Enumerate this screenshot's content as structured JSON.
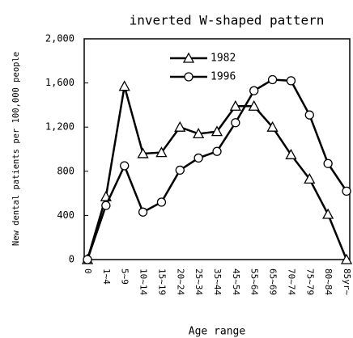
{
  "chart_data": {
    "type": "line",
    "title": "inverted W-shaped pattern",
    "x_label": "Age range",
    "y_label": "New dental patients per 100,000 people",
    "categories": [
      "0",
      "1~4",
      "5~9",
      "10~14",
      "15~19",
      "20~24",
      "25~34",
      "35~44",
      "45~54",
      "55~64",
      "65~69",
      "70~74",
      "75~79",
      "80~84",
      "85yr~"
    ],
    "series": [
      {
        "name": "1982",
        "color": "#000000",
        "marker": "triangle",
        "values": [
          0,
          570,
          1570,
          960,
          970,
          1200,
          1140,
          1160,
          1390,
          1390,
          1200,
          950,
          730,
          410,
          0
        ]
      },
      {
        "name": "1996",
        "color": "#000000",
        "marker": "circle",
        "values": [
          0,
          490,
          850,
          430,
          520,
          810,
          920,
          980,
          1240,
          1530,
          1630,
          1620,
          1310,
          870,
          620
        ]
      }
    ],
    "ylim": [
      0,
      2000
    ],
    "yticks": [
      0,
      400,
      800,
      {
        "value": 1200,
        "label": "1,200"
      },
      {
        "value": 1600,
        "label": "1,600"
      },
      {
        "value": 2000,
        "label": "2,000"
      }
    ],
    "legend": "upper-left"
  }
}
